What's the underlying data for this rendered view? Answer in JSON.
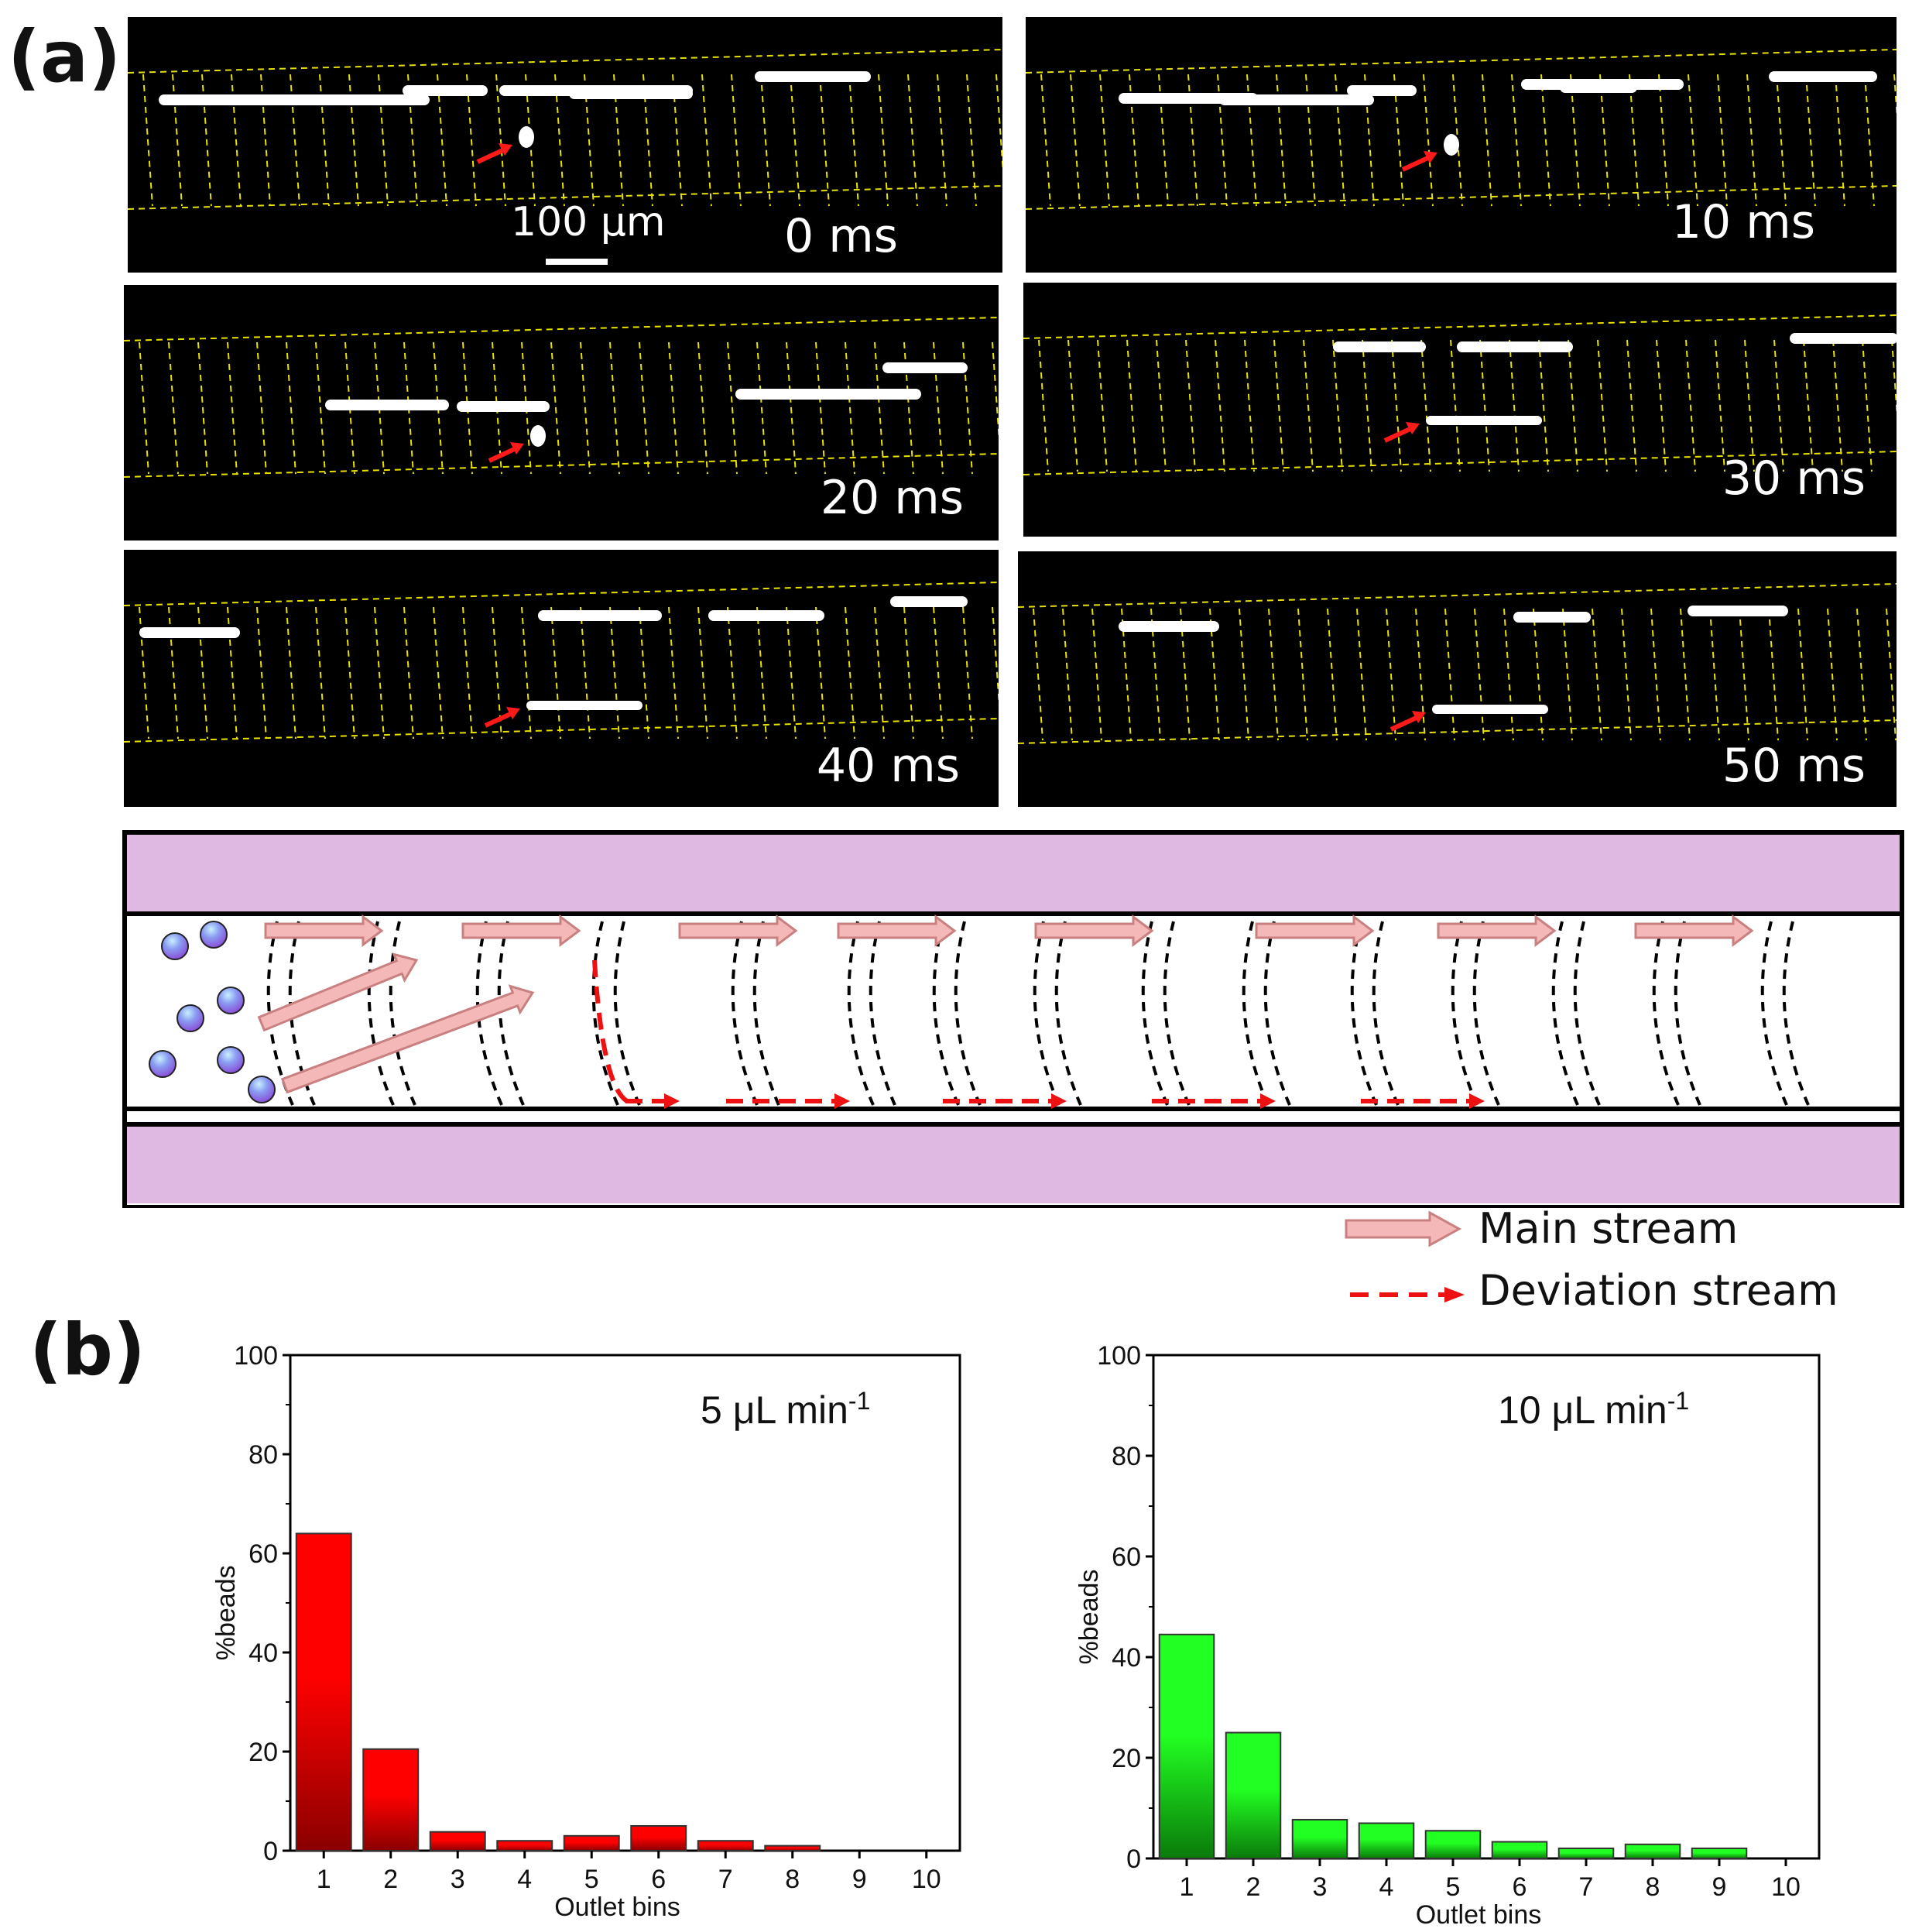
{
  "figure": {
    "panel_a": "(a)",
    "panel_b": "(b)"
  },
  "frames": [
    {
      "time": "0 ms"
    },
    {
      "time": "10 ms"
    },
    {
      "time": "20 ms"
    },
    {
      "time": "30 ms"
    },
    {
      "time": "40 ms"
    },
    {
      "time": "50 ms"
    }
  ],
  "scale_bar": {
    "label": "100 µm"
  },
  "schematic": {
    "legend": {
      "main_stream": "Main stream",
      "deviation_stream": "Deviation stream"
    },
    "colors": {
      "wall": "#e0b9e3",
      "arrow_fill": "#f4b8b8",
      "arrow_stroke": "#c98080",
      "deviation": "#ee1111"
    }
  },
  "chart_data": [
    {
      "type": "bar",
      "title": "5 μL min",
      "title_superscript": "-1",
      "xlabel": "Outlet bins",
      "ylabel": "%beads",
      "categories": [
        "1",
        "2",
        "3",
        "4",
        "5",
        "6",
        "7",
        "8",
        "9",
        "10"
      ],
      "values": [
        64,
        20.5,
        3.8,
        2,
        3,
        5,
        2,
        1,
        0,
        0
      ],
      "ylim": [
        0,
        100
      ],
      "yticks": [
        "0",
        "20",
        "40",
        "60",
        "80",
        "100"
      ],
      "color_top": "#ff0000",
      "color_bottom": "#8a0000"
    },
    {
      "type": "bar",
      "title": "10 μL min",
      "title_superscript": "-1",
      "xlabel": "Outlet bins",
      "ylabel": "%beads",
      "categories": [
        "1",
        "2",
        "3",
        "4",
        "5",
        "6",
        "7",
        "8",
        "9",
        "10"
      ],
      "values": [
        44.5,
        25,
        7.7,
        7,
        5.5,
        3.3,
        2,
        2.8,
        2,
        0
      ],
      "ylim": [
        0,
        100
      ],
      "yticks": [
        "0",
        "20",
        "40",
        "60",
        "80",
        "100"
      ],
      "color_top": "#22ff22",
      "color_bottom": "#0a7a0a"
    }
  ]
}
